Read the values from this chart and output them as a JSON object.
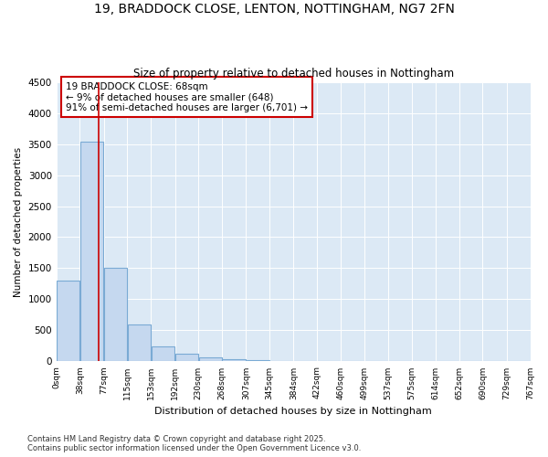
{
  "title": "19, BRADDOCK CLOSE, LENTON, NOTTINGHAM, NG7 2FN",
  "subtitle": "Size of property relative to detached houses in Nottingham",
  "xlabel": "Distribution of detached houses by size in Nottingham",
  "ylabel": "Number of detached properties",
  "bar_values": [
    1300,
    3530,
    1500,
    600,
    240,
    130,
    60,
    30,
    15,
    5,
    3,
    1,
    1,
    0,
    0,
    0,
    0,
    0,
    0,
    0
  ],
  "bar_edges": [
    0,
    38,
    77,
    115,
    153,
    192,
    230,
    268,
    307,
    345,
    384,
    422,
    460,
    499,
    537,
    575,
    614,
    652,
    690,
    729,
    767
  ],
  "x_tick_labels": [
    "0sqm",
    "38sqm",
    "77sqm",
    "115sqm",
    "153sqm",
    "192sqm",
    "230sqm",
    "268sqm",
    "307sqm",
    "345sqm",
    "384sqm",
    "422sqm",
    "460sqm",
    "499sqm",
    "537sqm",
    "575sqm",
    "614sqm",
    "652sqm",
    "690sqm",
    "729sqm",
    "767sqm"
  ],
  "bar_color": "#c5d8ef",
  "bar_edge_color": "#7aaad4",
  "property_x": 68,
  "property_line_color": "#cc0000",
  "annotation_text": "19 BRADDOCK CLOSE: 68sqm\n← 9% of detached houses are smaller (648)\n91% of semi-detached houses are larger (6,701) →",
  "annotation_box_color": "#ffffff",
  "annotation_box_edge": "#cc0000",
  "ylim": [
    0,
    4500
  ],
  "xlim": [
    0,
    767
  ],
  "bg_color": "#dce9f5",
  "footer1": "Contains HM Land Registry data © Crown copyright and database right 2025.",
  "footer2": "Contains public sector information licensed under the Open Government Licence v3.0."
}
